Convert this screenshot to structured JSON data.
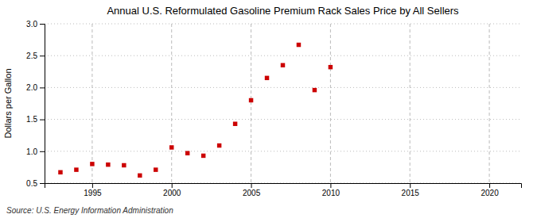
{
  "chart_data": {
    "type": "scatter",
    "title": "Annual U.S. Reformulated Gasoline Premium Rack Sales Price by All Sellers",
    "ylabel": "Dollars per Gallon",
    "annotation": "Source: U.S. Energy Information Administration",
    "x": [
      1993,
      1994,
      1995,
      1996,
      1997,
      1998,
      1999,
      2000,
      2001,
      2002,
      2003,
      2004,
      2005,
      2006,
      2007,
      2008,
      2009,
      2010
    ],
    "values": [
      0.67,
      0.71,
      0.8,
      0.79,
      0.78,
      0.62,
      0.71,
      1.06,
      0.97,
      0.93,
      1.09,
      1.43,
      1.8,
      2.15,
      2.35,
      2.67,
      1.96,
      2.32
    ],
    "color": "#cc0000",
    "marker": "square",
    "xlim": [
      1992,
      2022
    ],
    "ylim": [
      0.5,
      3.0
    ],
    "xticks": [
      1995,
      2000,
      2005,
      2010,
      2015,
      2020
    ],
    "yticks": [
      0.5,
      {
        "value": 1.0,
        "label": "1.0"
      },
      1.5,
      {
        "value": 2.0,
        "label": "2.0"
      },
      2.5,
      {
        "value": 3.0,
        "label": "3.0"
      }
    ],
    "grid": true
  }
}
